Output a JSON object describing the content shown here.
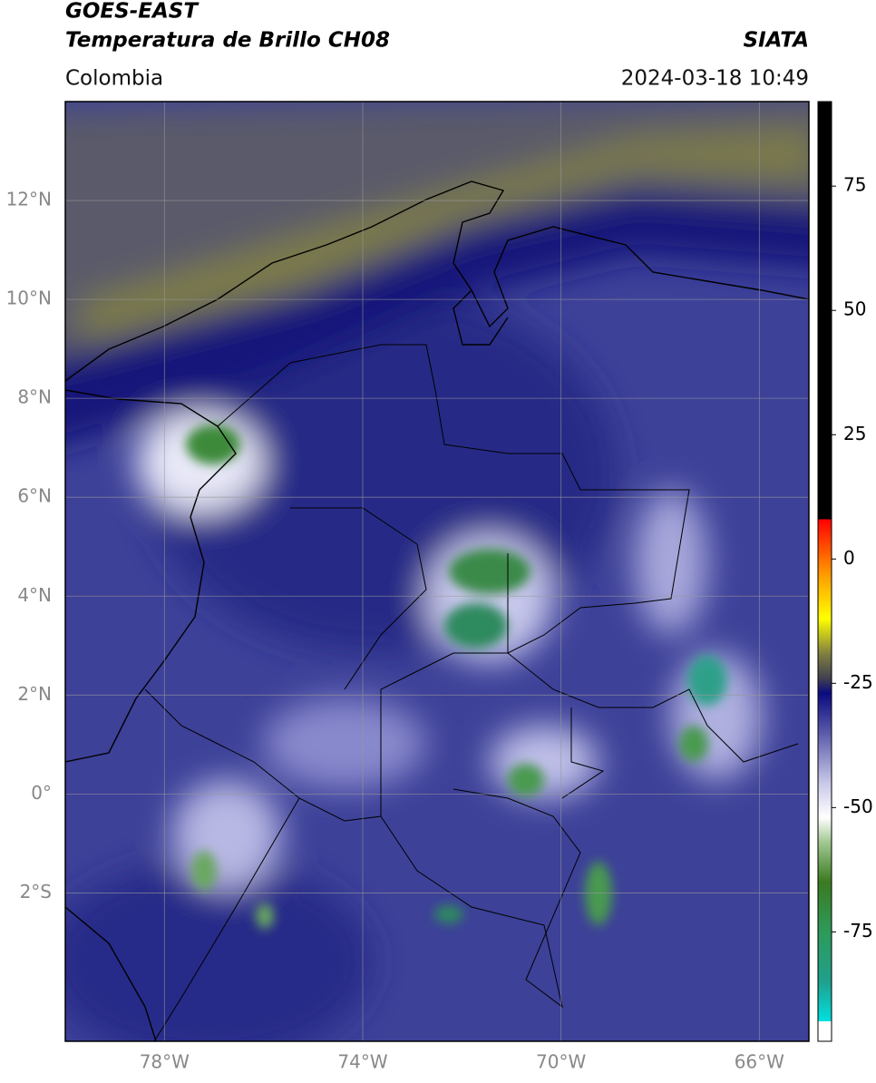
{
  "chart_data": {
    "type": "map",
    "title": "GOES-EAST",
    "subtitle": "Temperatura de Brillo CH08",
    "source": "SIATA",
    "region": "Colombia",
    "datetime": "2024-03-18 10:49",
    "xlim": [
      -80,
      -65
    ],
    "ylim": [
      -5,
      14
    ],
    "xticks": [
      {
        "value": -78,
        "label": "78°W"
      },
      {
        "value": -74,
        "label": "74°W"
      },
      {
        "value": -70,
        "label": "70°W"
      },
      {
        "value": -66,
        "label": "66°W"
      }
    ],
    "yticks": [
      {
        "value": 12,
        "label": "12°N"
      },
      {
        "value": 10,
        "label": "10°N"
      },
      {
        "value": 8,
        "label": "8°N"
      },
      {
        "value": 6,
        "label": "6°N"
      },
      {
        "value": 4,
        "label": "4°N"
      },
      {
        "value": 2,
        "label": "2°N"
      },
      {
        "value": 0,
        "label": "0°"
      },
      {
        "value": -2,
        "label": "2°S"
      }
    ],
    "grid": true,
    "colorbar": {
      "lim": [
        -97,
        92
      ],
      "ticks": [
        75,
        50,
        25,
        0,
        -25,
        -50,
        -75
      ],
      "stops": [
        [
          -97,
          "#ffffff"
        ],
        [
          -93,
          "#ffffff"
        ],
        [
          -93,
          "#00e0e0"
        ],
        [
          -85,
          "#1fa08c"
        ],
        [
          -75,
          "#2e9a5a"
        ],
        [
          -65,
          "#3a7a20"
        ],
        [
          -57,
          "#a0c890"
        ],
        [
          -52,
          "#ffffff"
        ],
        [
          -45,
          "#c8c8e8"
        ],
        [
          -35,
          "#5a5aaa"
        ],
        [
          -27,
          "#0a0a80"
        ],
        [
          -24,
          "#404050"
        ],
        [
          -19,
          "#808040"
        ],
        [
          -12,
          "#ffff00"
        ],
        [
          -3,
          "#ff9900"
        ],
        [
          8,
          "#ff0000"
        ],
        [
          8,
          "#000000"
        ],
        [
          92,
          "#000000"
        ]
      ]
    }
  }
}
